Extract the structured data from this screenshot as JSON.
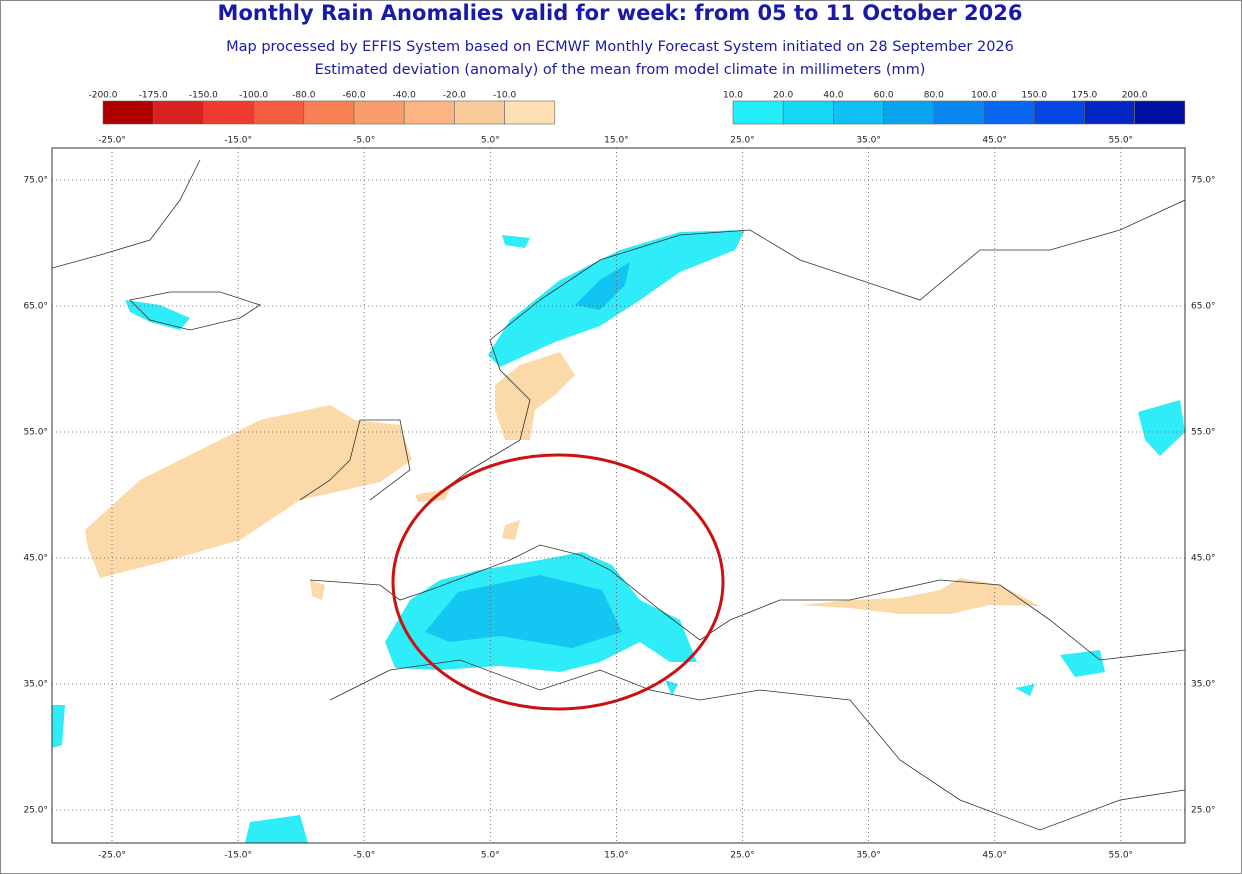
{
  "header": {
    "title": "Monthly Rain Anomalies valid for week: from 05 to 11 October 2026",
    "subtitle": "Map processed by EFFIS System based on ECMWF Monthly Forecast System initiated on 28 September 2026",
    "subtitle2": "Estimated deviation (anomaly) of the mean from model climate in millimeters (mm)"
  },
  "legend": {
    "negative": {
      "labels": [
        "-200.0",
        "-175.0",
        "-150.0",
        "-100.0",
        "-80.0",
        "-60.0",
        "-40.0",
        "-20.0",
        "-10.0"
      ],
      "colors": [
        "#b00000",
        "#d82222",
        "#f03c30",
        "#f45c40",
        "#f78055",
        "#f99c6c",
        "#fbb583",
        "#fccb9c",
        "#fde0b4"
      ]
    },
    "positive": {
      "labels": [
        "10.0",
        "20.0",
        "40.0",
        "60.0",
        "80.0",
        "100.0",
        "150.0",
        "175.0",
        "200.0"
      ],
      "colors": [
        "#22eef8",
        "#16d8f4",
        "#10c0f2",
        "#0aa4ee",
        "#0a86ee",
        "#0866f0",
        "#0646e4",
        "#0426c4",
        "#0010a0"
      ]
    }
  },
  "map": {
    "lon_labels": [
      "-25.0°",
      "-15.0°",
      "-5.0°",
      "5.0°",
      "15.0°",
      "25.0°",
      "35.0°",
      "45.0°",
      "55.0°"
    ],
    "lat_labels": [
      "75.0°",
      "65.0°",
      "55.0°",
      "45.0°",
      "35.0°",
      "25.0°"
    ]
  }
}
